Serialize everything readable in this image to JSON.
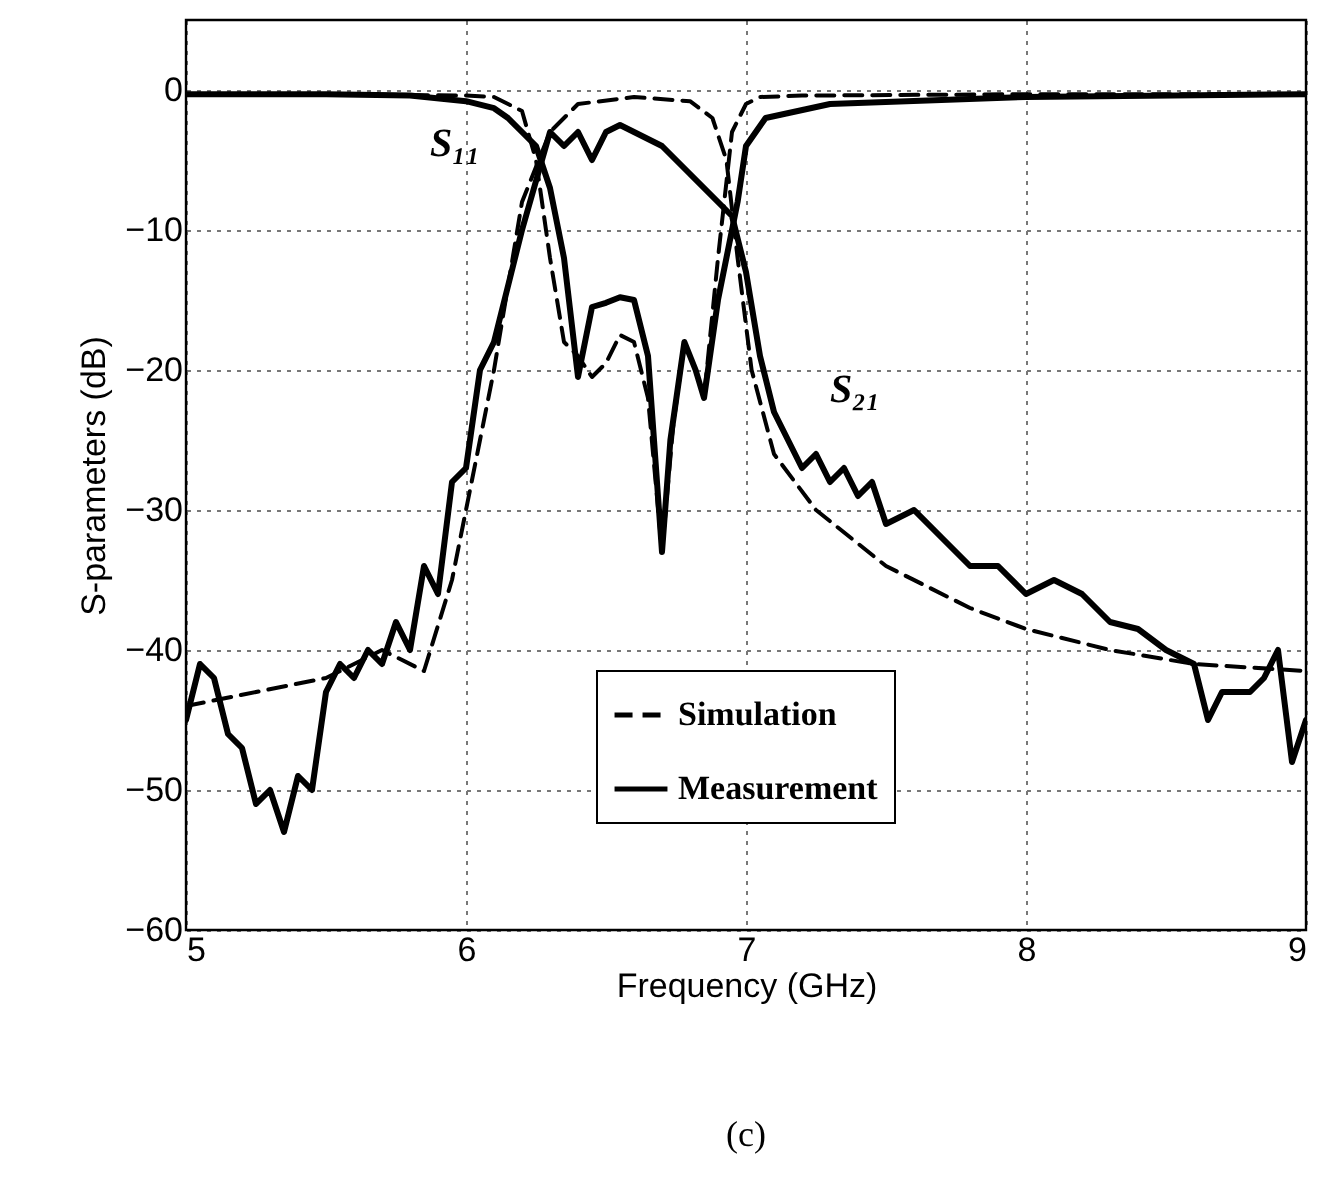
{
  "chart_data": {
    "type": "line",
    "xlabel": "Frequency (GHz)",
    "ylabel": "S-parameters (dB)",
    "xlim": [
      5,
      9
    ],
    "ylim": [
      -60,
      5
    ],
    "xticks": [
      5,
      6,
      7,
      8,
      9
    ],
    "yticks": [
      -60,
      -50,
      -40,
      -30,
      -20,
      -10,
      0
    ],
    "grid": true,
    "legend": "bottom right",
    "annotations": [
      "S₁₁",
      "S₂₁",
      "(c)"
    ],
    "series": [
      {
        "name": "Simulation",
        "color": "#000000",
        "line_style": "dashed",
        "x": [
          5,
          5.5,
          6,
          6.1,
          6.2,
          6.25,
          6.3,
          6.35,
          6.4,
          6.45,
          6.5,
          6.55,
          6.6,
          6.65,
          6.7,
          6.74,
          6.78,
          6.82,
          6.85,
          6.9,
          6.95,
          7.0,
          7.05,
          7.2,
          8,
          9
        ],
        "values": [
          -0.3,
          -0.3,
          -0.4,
          -0.5,
          -1.5,
          -5,
          -12,
          -18,
          -19,
          -20.5,
          -19.5,
          -17.5,
          -18,
          -22,
          -33,
          -24,
          -18,
          -20,
          -22,
          -12,
          -3,
          -1,
          -0.5,
          -0.4,
          -0.3,
          -0.3
        ]
      },
      {
        "color": "#000000",
        "line_style": "dashed",
        "x": [
          5,
          5.5,
          5.7,
          5.85,
          5.95,
          6.05,
          6.1,
          6.2,
          6.3,
          6.4,
          6.6,
          6.8,
          6.88,
          6.93,
          6.97,
          7.02,
          7.1,
          7.25,
          7.5,
          7.8,
          8,
          8.3,
          8.6,
          9
        ],
        "values": [
          -44,
          -42,
          -40,
          -41.5,
          -35,
          -25,
          -20,
          -8,
          -3,
          -1,
          -0.5,
          -0.8,
          -2,
          -5,
          -12,
          -20,
          -26,
          -30,
          -34,
          -37,
          -38.5,
          -40,
          -41,
          -41.5
        ]
      },
      {
        "name": "Measurement",
        "color": "#000000",
        "line_style": "solid",
        "x": [
          5,
          5.5,
          5.8,
          6,
          6.1,
          6.15,
          6.2,
          6.25,
          6.3,
          6.35,
          6.4,
          6.45,
          6.5,
          6.55,
          6.6,
          6.65,
          6.7,
          6.73,
          6.78,
          6.82,
          6.85,
          6.9,
          6.97,
          7,
          7.07,
          7.3,
          8,
          9
        ],
        "values": [
          -0.3,
          -0.3,
          -0.4,
          -0.8,
          -1.3,
          -2,
          -3,
          -4,
          -7,
          -12,
          -20.5,
          -15.5,
          -15.2,
          -14.8,
          -15,
          -19,
          -33,
          -25,
          -18,
          -20,
          -22,
          -15,
          -8,
          -4,
          -2,
          -1,
          -0.5,
          -0.3
        ]
      },
      {
        "color": "#000000",
        "line_style": "solid",
        "x": [
          5,
          5.05,
          5.1,
          5.15,
          5.2,
          5.25,
          5.3,
          5.35,
          5.4,
          5.45,
          5.5,
          5.55,
          5.6,
          5.65,
          5.7,
          5.75,
          5.8,
          5.85,
          5.9,
          5.95,
          6,
          6.05,
          6.1,
          6.2,
          6.3,
          6.35,
          6.4,
          6.45,
          6.5,
          6.55,
          6.6,
          6.7,
          6.8,
          6.85,
          6.9,
          6.95,
          7,
          7.05,
          7.1,
          7.15,
          7.2,
          7.25,
          7.3,
          7.35,
          7.4,
          7.45,
          7.5,
          7.6,
          7.7,
          7.8,
          7.9,
          8,
          8.1,
          8.2,
          8.3,
          8.4,
          8.5,
          8.6,
          8.65,
          8.7,
          8.8,
          8.85,
          8.9,
          8.95,
          9
        ],
        "values": [
          -45,
          -41,
          -42,
          -46,
          -47,
          -51,
          -50,
          -53,
          -49,
          -50,
          -43,
          -41,
          -42,
          -40,
          -41,
          -38,
          -40,
          -34,
          -36,
          -28,
          -27,
          -20,
          -18,
          -10,
          -3,
          -4,
          -3,
          -5,
          -3,
          -2.5,
          -3,
          -4,
          -6,
          -7,
          -8,
          -9,
          -13,
          -19,
          -23,
          -25,
          -27,
          -26,
          -28,
          -27,
          -29,
          -28,
          -31,
          -30,
          -32,
          -34,
          -34,
          -36,
          -35,
          -36,
          -38,
          -38.5,
          -40,
          -41,
          -45,
          -43,
          -43,
          -42,
          -40,
          -48,
          -45
        ]
      }
    ]
  }
}
